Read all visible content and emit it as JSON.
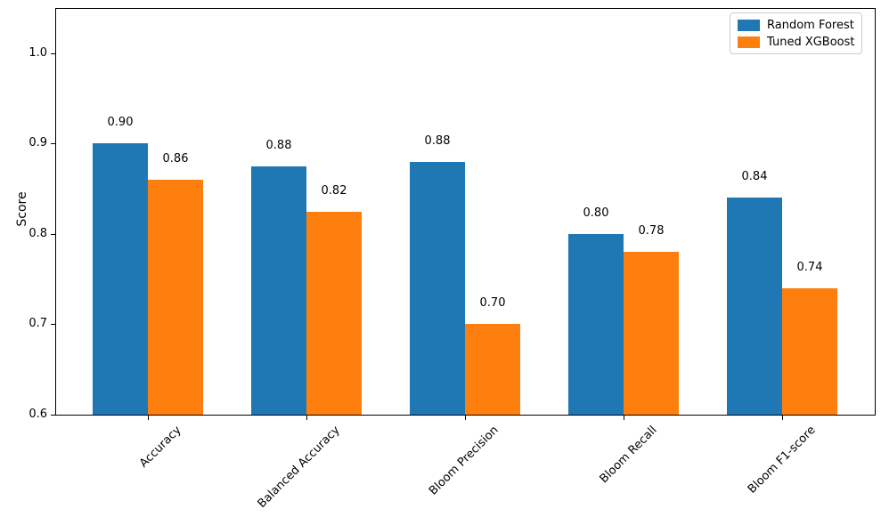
{
  "chart_data": {
    "type": "bar",
    "categories": [
      "Accuracy",
      "Balanced Accuracy",
      "Bloom Precision",
      "Bloom Recall",
      "Bloom F1-score"
    ],
    "series": [
      {
        "name": "Random Forest",
        "color": "#1f77b4",
        "values": [
          0.9,
          0.875,
          0.88,
          0.8,
          0.84
        ],
        "labels": [
          "0.90",
          "0.88",
          "0.88",
          "0.80",
          "0.84"
        ]
      },
      {
        "name": "Tuned XGBoost",
        "color": "#ff7f0e",
        "values": [
          0.86,
          0.825,
          0.7,
          0.78,
          0.74
        ],
        "labels": [
          "0.86",
          "0.82",
          "0.70",
          "0.78",
          "0.74"
        ]
      }
    ],
    "ylabel": "Score",
    "ylim": [
      0.6,
      1.05
    ],
    "yticks": [
      0.6,
      0.7,
      0.8,
      0.9,
      1.0
    ],
    "ytick_labels": [
      "0.6",
      "0.7",
      "0.8",
      "0.9",
      "1.0"
    ],
    "x_tick_rotation_deg": 45,
    "grid": false,
    "legend": {
      "position": "upper right"
    }
  }
}
